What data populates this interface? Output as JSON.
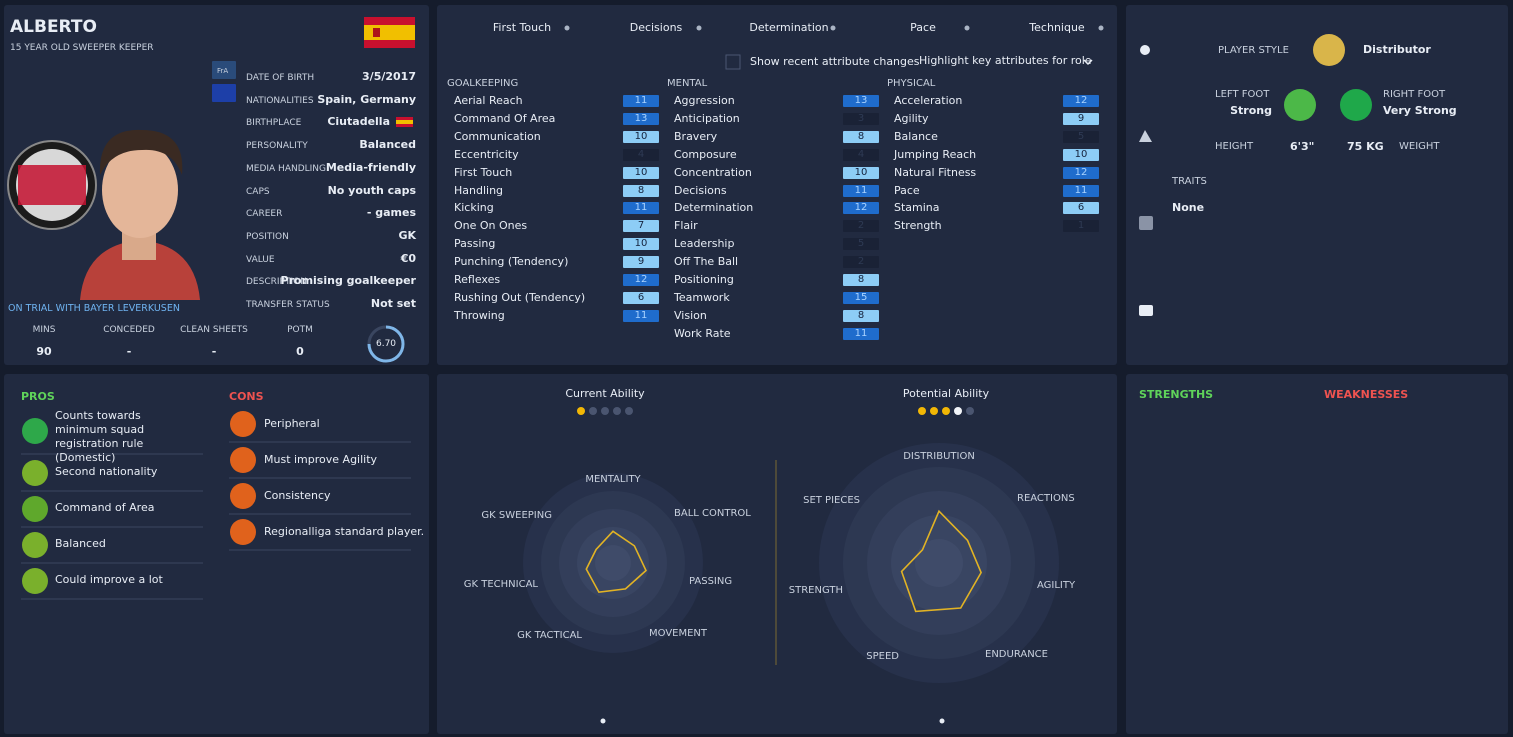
{
  "player": {
    "name": "ALBERTO",
    "subtitle": "15 YEAR OLD SWEEPER KEEPER",
    "badge_code": "FrA",
    "trial": "ON TRIAL WITH BAYER LEVERKUSEN",
    "rating": "6.70"
  },
  "details": [
    {
      "label": "DATE OF BIRTH",
      "value": "3/5/2017"
    },
    {
      "label": "NATIONALITIES",
      "value": "Spain, Germany"
    },
    {
      "label": "BIRTHPLACE",
      "value": "Ciutadella"
    },
    {
      "label": "PERSONALITY",
      "value": "Balanced"
    },
    {
      "label": "MEDIA HANDLING",
      "value": "Media-friendly"
    },
    {
      "label": "CAPS",
      "value": "No youth caps"
    },
    {
      "label": "CAREER",
      "value": "- games"
    },
    {
      "label": "POSITION",
      "value": "GK"
    },
    {
      "label": "VALUE",
      "value": "€0"
    },
    {
      "label": "DESCRIPTION",
      "value": "Promising goalkeeper"
    },
    {
      "label": "TRANSFER STATUS",
      "value": "Not set"
    }
  ],
  "stats": [
    {
      "label": "MINS",
      "value": "90"
    },
    {
      "label": "CONCEDED",
      "value": "-"
    },
    {
      "label": "CLEAN SHEETS",
      "value": "-"
    },
    {
      "label": "POTM",
      "value": "0"
    }
  ],
  "key_attributes": [
    "First Touch",
    "Decisions",
    "Determination",
    "Pace",
    "Technique"
  ],
  "options": {
    "recent_changes": "Show recent attribute changes",
    "highlight": "Highlight key attributes for role"
  },
  "attribute_groups": [
    {
      "title": "GOALKEEPING",
      "items": [
        {
          "name": "Aerial Reach",
          "value": 11,
          "key": true
        },
        {
          "name": "Command Of Area",
          "value": 13,
          "key": true
        },
        {
          "name": "Communication",
          "value": 10,
          "key": true
        },
        {
          "name": "Eccentricity",
          "value": 4,
          "key": false
        },
        {
          "name": "First Touch",
          "value": 10,
          "key": true
        },
        {
          "name": "Handling",
          "value": 8,
          "key": true
        },
        {
          "name": "Kicking",
          "value": 11,
          "key": true
        },
        {
          "name": "One On Ones",
          "value": 7,
          "key": true
        },
        {
          "name": "Passing",
          "value": 10,
          "key": true
        },
        {
          "name": "Punching (Tendency)",
          "value": 9,
          "key": true
        },
        {
          "name": "Reflexes",
          "value": 12,
          "key": true
        },
        {
          "name": "Rushing Out (Tendency)",
          "value": 6,
          "key": true
        },
        {
          "name": "Throwing",
          "value": 11,
          "key": true
        }
      ]
    },
    {
      "title": "MENTAL",
      "items": [
        {
          "name": "Aggression",
          "value": 13,
          "key": true
        },
        {
          "name": "Anticipation",
          "value": 3,
          "key": false
        },
        {
          "name": "Bravery",
          "value": 8,
          "key": true
        },
        {
          "name": "Composure",
          "value": 4,
          "key": false
        },
        {
          "name": "Concentration",
          "value": 10,
          "key": true
        },
        {
          "name": "Decisions",
          "value": 11,
          "key": true
        },
        {
          "name": "Determination",
          "value": 12,
          "key": true
        },
        {
          "name": "Flair",
          "value": 2,
          "key": false
        },
        {
          "name": "Leadership",
          "value": 5,
          "key": false
        },
        {
          "name": "Off The Ball",
          "value": 2,
          "key": false
        },
        {
          "name": "Positioning",
          "value": 8,
          "key": true
        },
        {
          "name": "Teamwork",
          "value": 15,
          "key": true
        },
        {
          "name": "Vision",
          "value": 8,
          "key": true
        },
        {
          "name": "Work Rate",
          "value": 11,
          "key": true
        }
      ]
    },
    {
      "title": "PHYSICAL",
      "items": [
        {
          "name": "Acceleration",
          "value": 12,
          "key": true
        },
        {
          "name": "Agility",
          "value": 9,
          "key": true
        },
        {
          "name": "Balance",
          "value": 5,
          "key": false
        },
        {
          "name": "Jumping Reach",
          "value": 10,
          "key": true
        },
        {
          "name": "Natural Fitness",
          "value": 12,
          "key": true
        },
        {
          "name": "Pace",
          "value": 11,
          "key": true
        },
        {
          "name": "Stamina",
          "value": 6,
          "key": true
        },
        {
          "name": "Strength",
          "value": 1,
          "key": false
        }
      ]
    }
  ],
  "profile": {
    "style_label": "PLAYER STYLE",
    "style": "Distributor",
    "left_foot_label": "LEFT FOOT",
    "left_foot": "Strong",
    "right_foot_label": "RIGHT FOOT",
    "right_foot": "Very Strong",
    "height_label": "HEIGHT",
    "height": "6'3\"",
    "weight": "75 KG",
    "weight_label": "WEIGHT",
    "traits_label": "TRAITS",
    "traits": "None"
  },
  "pros": {
    "title": "PROS",
    "items": [
      "Counts towards minimum squad registration rule (Domestic)",
      "Second nationality",
      "Command of Area",
      "Balanced",
      "Could improve a lot"
    ]
  },
  "cons": {
    "title": "CONS",
    "items": [
      "Peripheral",
      "Must improve Agility",
      "Consistency",
      "Regionalliga standard player."
    ]
  },
  "charts": [
    {
      "type": "radar",
      "title": "Current Ability",
      "stars": 1,
      "max_stars": 5,
      "rlim": [
        0,
        100
      ],
      "categories": [
        "MENTALITY",
        "BALL CONTROL",
        "PASSING",
        "MOVEMENT",
        "GK TACTICAL",
        "GK TECHNICAL",
        "GK SWEEPING"
      ],
      "values": [
        44,
        38,
        47,
        40,
        45,
        38,
        30
      ],
      "color": "#e2b324"
    },
    {
      "type": "radar",
      "title": "Potential Ability",
      "stars": 3.5,
      "max_stars": 5,
      "rlim": [
        0,
        100
      ],
      "categories": [
        "DISTRIBUTION",
        "REACTIONS",
        "AGILITY",
        "ENDURANCE",
        "SPEED",
        "STRENGTH",
        "SET PIECES"
      ],
      "values": [
        54,
        38,
        45,
        52,
        56,
        40,
        22
      ],
      "color": "#e2b324"
    }
  ],
  "strengths": {
    "title": "STRENGTHS"
  },
  "weaknesses": {
    "title": "WEAKNESSES"
  }
}
